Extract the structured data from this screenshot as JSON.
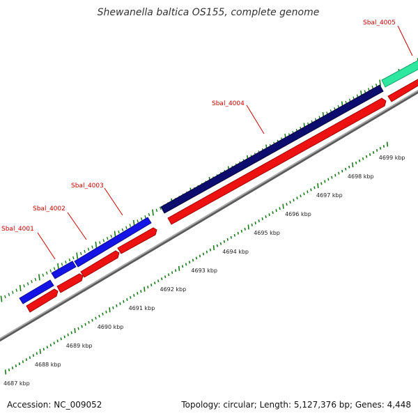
{
  "title": "Shewanella baltica OS155, complete genome",
  "footer": {
    "accession": "Accession: NC_009052",
    "summary": "Topology: circular; Length: 5,127,376 bp; Genes: 4,448"
  },
  "genes": [
    {
      "label": "Sbal_4001"
    },
    {
      "label": "Sbal_4002"
    },
    {
      "label": "Sbal_4003"
    },
    {
      "label": "Sbal_4004"
    },
    {
      "label": "Sbal_4005"
    }
  ],
  "scale_labels": [
    "4687 kbp",
    "4688 kbp",
    "4689 kbp",
    "4690 kbp",
    "4691 kbp",
    "4692 kbp",
    "4693 kbp",
    "4694 kbp",
    "4695 kbp",
    "4696 kbp",
    "4697 kbp",
    "4698 kbp",
    "4699 kbp"
  ],
  "colors": {
    "gene_blue": "#1414e6",
    "gene_navy": "#0c0c6e",
    "gene_green": "#2ee8a0",
    "cds_red": "#ee1111",
    "label_red": "#cc0000",
    "backbone": "#8a8a8a",
    "tick_green": "#1a7a1a"
  }
}
